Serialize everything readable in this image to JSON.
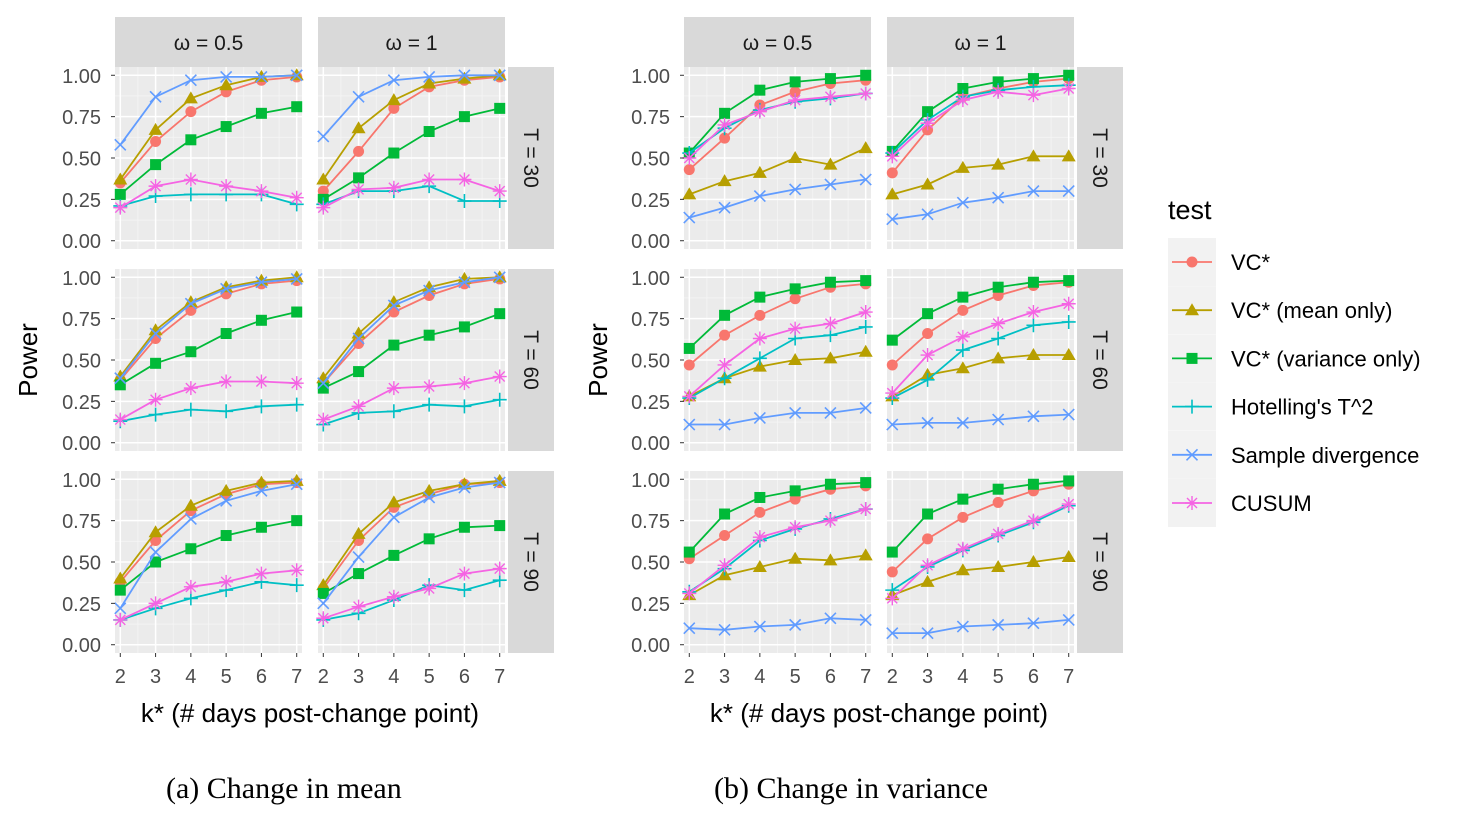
{
  "figure": {
    "captions": [
      "(a) Change in mean",
      "(b) Change in variance"
    ]
  },
  "chart_data": {
    "type": "line",
    "ylabel": "Power",
    "xlabel": "k* (# days post-change point)",
    "x": [
      2,
      3,
      4,
      5,
      6,
      7
    ],
    "xlim": [
      1.85,
      7.15
    ],
    "ylim": [
      -0.05,
      1.05
    ],
    "yticks": [
      0,
      0.25,
      0.5,
      0.75,
      1
    ],
    "ytick_labels": [
      "0.00",
      "0.25",
      "0.50",
      "0.75",
      "1.00"
    ],
    "col_labels": [
      "ω = 0.5",
      "ω = 1"
    ],
    "row_labels": [
      "T = 30",
      "T = 60",
      "T = 90"
    ],
    "legend": {
      "title": "test",
      "position": "right",
      "entries": [
        {
          "name": "VC*",
          "color": "#F8766D",
          "shape": "circle"
        },
        {
          "name": "VC* (mean only)",
          "color": "#B79F00",
          "shape": "triangle"
        },
        {
          "name": "VC* (variance only)",
          "color": "#00BA38",
          "shape": "square"
        },
        {
          "name": "Hotelling's T^2",
          "color": "#00BFC4",
          "shape": "plus"
        },
        {
          "name": "Sample divergence",
          "color": "#619CFF",
          "shape": "cross"
        },
        {
          "name": "CUSUM",
          "color": "#F564E3",
          "shape": "asterisk"
        }
      ]
    },
    "groups": [
      {
        "caption": "(a) Change in mean",
        "panels": [
          [
            {
              "series": [
                [
                  0.35,
                  0.6,
                  0.78,
                  0.9,
                  0.97,
                  0.99
                ],
                [
                  0.37,
                  0.67,
                  0.86,
                  0.94,
                  0.99,
                  1.0
                ],
                [
                  0.28,
                  0.46,
                  0.61,
                  0.69,
                  0.77,
                  0.81
                ],
                [
                  0.21,
                  0.27,
                  0.28,
                  0.28,
                  0.28,
                  0.22
                ],
                [
                  0.58,
                  0.87,
                  0.97,
                  0.99,
                  0.99,
                  1.0
                ],
                [
                  0.2,
                  0.33,
                  0.37,
                  0.33,
                  0.3,
                  0.26
                ]
              ]
            },
            {
              "series": [
                [
                  0.3,
                  0.54,
                  0.8,
                  0.93,
                  0.97,
                  0.99
                ],
                [
                  0.37,
                  0.68,
                  0.85,
                  0.95,
                  0.98,
                  1.0
                ],
                [
                  0.25,
                  0.38,
                  0.53,
                  0.66,
                  0.75,
                  0.8
                ],
                [
                  0.22,
                  0.3,
                  0.3,
                  0.33,
                  0.24,
                  0.24
                ],
                [
                  0.63,
                  0.87,
                  0.97,
                  0.99,
                  1.0,
                  1.0
                ],
                [
                  0.2,
                  0.31,
                  0.32,
                  0.37,
                  0.37,
                  0.3
                ]
              ]
            }
          ],
          [
            {
              "series": [
                [
                  0.38,
                  0.63,
                  0.8,
                  0.9,
                  0.96,
                  0.98
                ],
                [
                  0.4,
                  0.68,
                  0.85,
                  0.94,
                  0.98,
                  1.0
                ],
                [
                  0.35,
                  0.48,
                  0.55,
                  0.66,
                  0.74,
                  0.79
                ],
                [
                  0.13,
                  0.17,
                  0.2,
                  0.19,
                  0.22,
                  0.23
                ],
                [
                  0.39,
                  0.66,
                  0.84,
                  0.93,
                  0.97,
                  0.99
                ],
                [
                  0.14,
                  0.26,
                  0.33,
                  0.37,
                  0.37,
                  0.36
                ]
              ]
            },
            {
              "series": [
                [
                  0.36,
                  0.6,
                  0.79,
                  0.89,
                  0.96,
                  0.99
                ],
                [
                  0.39,
                  0.66,
                  0.85,
                  0.94,
                  0.99,
                  1.0
                ],
                [
                  0.33,
                  0.43,
                  0.59,
                  0.65,
                  0.7,
                  0.78
                ],
                [
                  0.11,
                  0.18,
                  0.19,
                  0.23,
                  0.22,
                  0.26
                ],
                [
                  0.36,
                  0.63,
                  0.83,
                  0.92,
                  0.97,
                  1.0
                ],
                [
                  0.14,
                  0.22,
                  0.33,
                  0.34,
                  0.36,
                  0.4
                ]
              ]
            }
          ],
          [
            {
              "series": [
                [
                  0.38,
                  0.63,
                  0.81,
                  0.91,
                  0.97,
                  0.98
                ],
                [
                  0.4,
                  0.68,
                  0.84,
                  0.93,
                  0.98,
                  0.99
                ],
                [
                  0.33,
                  0.5,
                  0.58,
                  0.66,
                  0.71,
                  0.75
                ],
                [
                  0.15,
                  0.22,
                  0.28,
                  0.33,
                  0.38,
                  0.36
                ],
                [
                  0.22,
                  0.56,
                  0.76,
                  0.87,
                  0.93,
                  0.97
                ],
                [
                  0.15,
                  0.25,
                  0.35,
                  0.38,
                  0.43,
                  0.45
                ]
              ]
            },
            {
              "series": [
                [
                  0.34,
                  0.63,
                  0.83,
                  0.91,
                  0.97,
                  0.98
                ],
                [
                  0.36,
                  0.67,
                  0.86,
                  0.93,
                  0.97,
                  0.99
                ],
                [
                  0.31,
                  0.43,
                  0.54,
                  0.64,
                  0.71,
                  0.72
                ],
                [
                  0.15,
                  0.19,
                  0.27,
                  0.36,
                  0.33,
                  0.39
                ],
                [
                  0.25,
                  0.53,
                  0.77,
                  0.89,
                  0.95,
                  0.98
                ],
                [
                  0.16,
                  0.23,
                  0.29,
                  0.34,
                  0.43,
                  0.46
                ]
              ]
            }
          ]
        ]
      },
      {
        "caption": "(b) Change in variance",
        "panels": [
          [
            {
              "series": [
                [
                  0.43,
                  0.62,
                  0.82,
                  0.9,
                  0.95,
                  0.97
                ],
                [
                  0.28,
                  0.36,
                  0.41,
                  0.5,
                  0.46,
                  0.56
                ],
                [
                  0.53,
                  0.77,
                  0.91,
                  0.96,
                  0.98,
                  1.0
                ],
                [
                  0.53,
                  0.68,
                  0.79,
                  0.84,
                  0.86,
                  0.89
                ],
                [
                  0.14,
                  0.2,
                  0.27,
                  0.31,
                  0.34,
                  0.37
                ],
                [
                  0.5,
                  0.7,
                  0.78,
                  0.85,
                  0.87,
                  0.89
                ]
              ]
            },
            {
              "series": [
                [
                  0.41,
                  0.67,
                  0.87,
                  0.92,
                  0.96,
                  0.98
                ],
                [
                  0.28,
                  0.34,
                  0.44,
                  0.46,
                  0.51,
                  0.51
                ],
                [
                  0.54,
                  0.78,
                  0.92,
                  0.96,
                  0.98,
                  1.0
                ],
                [
                  0.53,
                  0.73,
                  0.87,
                  0.91,
                  0.93,
                  0.94
                ],
                [
                  0.13,
                  0.16,
                  0.23,
                  0.26,
                  0.3,
                  0.3
                ],
                [
                  0.51,
                  0.71,
                  0.85,
                  0.9,
                  0.88,
                  0.92
                ]
              ]
            }
          ],
          [
            {
              "series": [
                [
                  0.47,
                  0.65,
                  0.77,
                  0.87,
                  0.94,
                  0.96
                ],
                [
                  0.28,
                  0.39,
                  0.46,
                  0.5,
                  0.51,
                  0.55
                ],
                [
                  0.57,
                  0.77,
                  0.88,
                  0.93,
                  0.97,
                  0.98
                ],
                [
                  0.27,
                  0.39,
                  0.51,
                  0.63,
                  0.65,
                  0.7
                ],
                [
                  0.11,
                  0.11,
                  0.15,
                  0.18,
                  0.18,
                  0.21
                ],
                [
                  0.28,
                  0.47,
                  0.63,
                  0.69,
                  0.72,
                  0.79
                ]
              ]
            },
            {
              "series": [
                [
                  0.47,
                  0.66,
                  0.8,
                  0.89,
                  0.95,
                  0.97
                ],
                [
                  0.28,
                  0.41,
                  0.45,
                  0.51,
                  0.53,
                  0.53
                ],
                [
                  0.62,
                  0.78,
                  0.88,
                  0.94,
                  0.97,
                  0.98
                ],
                [
                  0.27,
                  0.38,
                  0.56,
                  0.63,
                  0.71,
                  0.73
                ],
                [
                  0.11,
                  0.12,
                  0.12,
                  0.14,
                  0.16,
                  0.17
                ],
                [
                  0.3,
                  0.53,
                  0.64,
                  0.72,
                  0.79,
                  0.84
                ]
              ]
            }
          ],
          [
            {
              "series": [
                [
                  0.52,
                  0.66,
                  0.8,
                  0.88,
                  0.94,
                  0.96
                ],
                [
                  0.3,
                  0.42,
                  0.47,
                  0.52,
                  0.51,
                  0.54
                ],
                [
                  0.56,
                  0.79,
                  0.89,
                  0.93,
                  0.97,
                  0.98
                ],
                [
                  0.32,
                  0.46,
                  0.63,
                  0.7,
                  0.76,
                  0.82
                ],
                [
                  0.1,
                  0.09,
                  0.11,
                  0.12,
                  0.16,
                  0.15
                ],
                [
                  0.31,
                  0.48,
                  0.65,
                  0.71,
                  0.75,
                  0.82
                ]
              ]
            },
            {
              "series": [
                [
                  0.44,
                  0.64,
                  0.77,
                  0.86,
                  0.93,
                  0.97
                ],
                [
                  0.3,
                  0.38,
                  0.45,
                  0.47,
                  0.5,
                  0.53
                ],
                [
                  0.56,
                  0.79,
                  0.88,
                  0.94,
                  0.97,
                  0.99
                ],
                [
                  0.33,
                  0.47,
                  0.57,
                  0.66,
                  0.74,
                  0.84
                ],
                [
                  0.07,
                  0.07,
                  0.11,
                  0.12,
                  0.13,
                  0.15
                ],
                [
                  0.28,
                  0.48,
                  0.58,
                  0.67,
                  0.75,
                  0.85
                ]
              ]
            }
          ]
        ]
      }
    ]
  }
}
